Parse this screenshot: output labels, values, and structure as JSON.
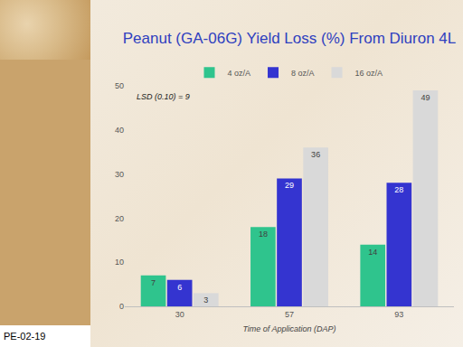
{
  "chart_data": {
    "type": "bar",
    "title": "Peanut (GA-06G) Yield Loss (%) From Diuron 4L",
    "x_label": "Time of Application (DAP)",
    "categories": [
      "30",
      "57",
      "93"
    ],
    "series": [
      {
        "name": "4 oz/A",
        "color": "#2fc48d",
        "values": [
          7,
          18,
          14
        ]
      },
      {
        "name": "8 oz/A",
        "color": "#3434d0",
        "values": [
          6,
          29,
          28
        ]
      },
      {
        "name": "16 oz/A",
        "color": "#d9d9d9",
        "values": [
          3,
          36,
          49
        ]
      }
    ],
    "ylim": [
      0,
      50
    ],
    "yticks": [
      0,
      10,
      20,
      30,
      40,
      50
    ],
    "grid": false,
    "legend": "top",
    "data_labels": true,
    "annotations": [
      "LSD (0.10) = 9"
    ]
  },
  "slide_code": "PE-02-19"
}
